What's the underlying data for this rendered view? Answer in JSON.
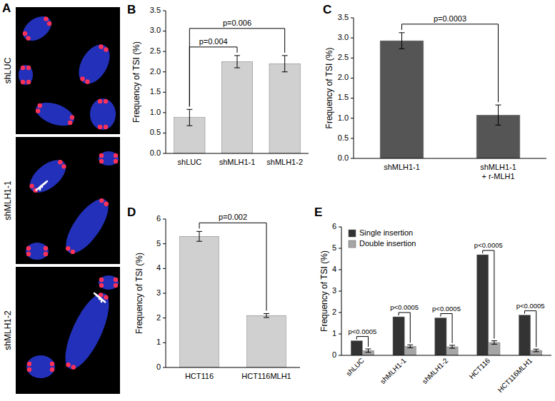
{
  "image_panel": {
    "title": "A",
    "labels": [
      "shLUC",
      "shMLH1-1",
      "shMLH1-2"
    ]
  },
  "chart_data": [
    {
      "type": "bar",
      "title": "B",
      "ylabel": "Frequency of TSI (%)",
      "categories": [
        "shLUC",
        "shMLH1-1",
        "shMLH1-2"
      ],
      "values": [
        0.88,
        2.25,
        2.2
      ],
      "errors": [
        0.2,
        0.15,
        0.2
      ],
      "color": "#d0d0d0",
      "ylim": [
        0,
        3.5
      ],
      "yticks": [
        {
          "value": 0,
          "label": "0.0"
        },
        0.5,
        {
          "value": 1,
          "label": "1.0"
        },
        1.5,
        {
          "value": 2,
          "label": "2.0"
        },
        2.5,
        {
          "value": 3,
          "label": "3.0"
        },
        3.5
      ],
      "comparisons": [
        {
          "label": "p=0.004",
          "pair": [
            "shLUC",
            "shMLH1-1"
          ]
        },
        {
          "label": "p=0.006",
          "pair": [
            "shLUC",
            "shMLH1-2"
          ]
        }
      ]
    },
    {
      "type": "bar",
      "title": "C",
      "ylabel": "Frequency of TSI (%)",
      "categories": [
        "shMLH1-1",
        "shMLH1-1 + r-MLH1"
      ],
      "values": [
        2.93,
        1.08
      ],
      "errors": [
        0.2,
        0.25
      ],
      "color": "#555555",
      "ylim": [
        0,
        3.5
      ],
      "yticks": [
        {
          "value": 0,
          "label": "0.0"
        },
        0.5,
        {
          "value": 1,
          "label": "1.0"
        },
        1.5,
        {
          "value": 2,
          "label": "2.0"
        },
        2.5,
        {
          "value": 3,
          "label": "3.0"
        },
        3.5
      ],
      "comparisons": [
        {
          "label": "p=0.0003",
          "pair": [
            "shMLH1-1",
            "shMLH1-1 + r-MLH1"
          ]
        }
      ]
    },
    {
      "type": "bar",
      "title": "D",
      "ylabel": "Frequency of TSI (%)",
      "categories": [
        "HCT116",
        "HCT116MLH1"
      ],
      "values": [
        5.3,
        2.1
      ],
      "errors": [
        0.2,
        0.08
      ],
      "color": "#d0d0d0",
      "ylim": [
        0,
        6
      ],
      "yticks": [
        0,
        1,
        2,
        3,
        4,
        5,
        6
      ],
      "comparisons": [
        {
          "label": "p=0.002",
          "pair": [
            "HCT116",
            "HCT116MLH1"
          ]
        }
      ]
    },
    {
      "type": "bar",
      "title": "E",
      "ylabel": "Frequency of TSI (%)",
      "categories": [
        "shLUC",
        "shMLH1-1",
        "shMLH1-2",
        "HCT116",
        "HCT116MLH1"
      ],
      "series": [
        {
          "name": "Single insertion",
          "color": "#333333",
          "values": [
            0.68,
            1.8,
            1.75,
            4.7,
            1.88
          ]
        },
        {
          "name": "Double insertion",
          "color": "#a6a6a6",
          "values": [
            0.22,
            0.42,
            0.4,
            0.6,
            0.23
          ],
          "errors": [
            0.08,
            0.07,
            0.07,
            0.08,
            0.06
          ]
        }
      ],
      "ylim": [
        0,
        6
      ],
      "yticks": [
        0,
        1,
        2,
        3,
        4,
        5,
        6
      ],
      "legend": "top-left",
      "comparisons": [
        {
          "label": "p<0.0005",
          "category": "shLUC"
        },
        {
          "label": "p<0.0005",
          "category": "shMLH1-1"
        },
        {
          "label": "p<0.0005",
          "category": "shMLH1-2"
        },
        {
          "label": "p<0.0005",
          "category": "HCT116"
        },
        {
          "label": "p<0.0005",
          "category": "HCT116MLH1"
        }
      ]
    }
  ]
}
